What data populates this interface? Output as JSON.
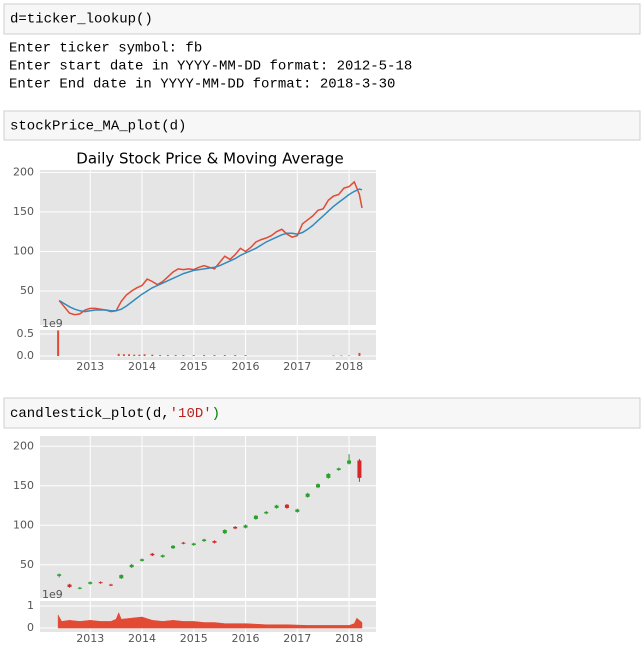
{
  "cells": [
    {
      "code": "d=ticker_lookup()",
      "output": [
        "Enter ticker symbol: fb",
        "Enter start date in YYYY-MM-DD format: 2012-5-18",
        "Enter End date in YYYY-MM-DD format: 2018-3-30"
      ]
    },
    {
      "code": "stockPrice_MA_plot(d)"
    },
    {
      "code": [
        "candlestick_plot(d,",
        "'10D'",
        ")"
      ]
    }
  ],
  "chart_data": [
    {
      "type": "line",
      "title": "Daily Stock Price & Moving Average",
      "x": [
        2012.4,
        2012.5,
        2012.6,
        2012.7,
        2012.8,
        2012.9,
        2013.0,
        2013.1,
        2013.2,
        2013.3,
        2013.4,
        2013.5,
        2013.6,
        2013.7,
        2013.8,
        2013.9,
        2014.0,
        2014.1,
        2014.2,
        2014.3,
        2014.4,
        2014.5,
        2014.6,
        2014.7,
        2014.8,
        2014.9,
        2015.0,
        2015.1,
        2015.2,
        2015.3,
        2015.4,
        2015.5,
        2015.6,
        2015.7,
        2015.8,
        2015.9,
        2016.0,
        2016.1,
        2016.2,
        2016.3,
        2016.4,
        2016.5,
        2016.6,
        2016.7,
        2016.8,
        2016.9,
        2017.0,
        2017.1,
        2017.2,
        2017.3,
        2017.4,
        2017.5,
        2017.6,
        2017.7,
        2017.8,
        2017.9,
        2018.0,
        2018.1,
        2018.2,
        2018.25
      ],
      "series": [
        {
          "color": "#e24a33",
          "values": [
            38,
            30,
            22,
            20,
            21,
            26,
            28,
            28,
            27,
            26,
            24,
            25,
            37,
            45,
            50,
            54,
            57,
            65,
            62,
            58,
            62,
            68,
            74,
            78,
            77,
            78,
            77,
            80,
            82,
            80,
            78,
            86,
            94,
            90,
            96,
            104,
            100,
            105,
            112,
            115,
            117,
            120,
            125,
            128,
            122,
            118,
            120,
            135,
            140,
            145,
            152,
            154,
            165,
            170,
            172,
            180,
            182,
            188,
            172,
            155
          ]
        },
        {
          "color": "#348abd",
          "values": [
            38,
            34,
            30,
            27,
            25,
            24,
            25,
            26,
            26,
            26,
            25,
            25,
            27,
            31,
            36,
            41,
            46,
            50,
            54,
            57,
            60,
            63,
            66,
            69,
            72,
            74,
            76,
            77,
            78,
            79,
            80,
            82,
            85,
            88,
            91,
            95,
            98,
            101,
            104,
            108,
            112,
            115,
            118,
            121,
            123,
            123,
            122,
            124,
            128,
            133,
            139,
            145,
            151,
            157,
            162,
            167,
            172,
            176,
            179,
            178
          ]
        }
      ],
      "xlim": [
        2012.03,
        2018.52
      ],
      "xticks": [
        2013,
        2014,
        2015,
        2016,
        2017,
        2018
      ],
      "ylim": [
        7,
        203
      ],
      "yticks": [
        50,
        100,
        150,
        200
      ],
      "grid": true
    },
    {
      "type": "bar",
      "y_offset_label": "1e9",
      "color": "#e24a33",
      "x": [
        2012.38,
        2013.55,
        2013.65,
        2013.75,
        2013.85,
        2013.95,
        2014.05,
        2014.2,
        2014.35,
        2014.5,
        2014.65,
        2014.8,
        2015.0,
        2015.2,
        2015.4,
        2015.6,
        2015.8,
        2016.0,
        2017.7,
        2017.85,
        2018.0,
        2018.2
      ],
      "values": [
        0.58,
        0.05,
        0.04,
        0.04,
        0.03,
        0.03,
        0.04,
        0.03,
        0.02,
        0.02,
        0.02,
        0.02,
        0.02,
        0.02,
        0.02,
        0.02,
        0.02,
        0.02,
        0.01,
        0.01,
        0.01,
        0.07
      ],
      "xlim": [
        2012.03,
        2018.52
      ],
      "xticks": [
        2013,
        2014,
        2015,
        2016,
        2017,
        2018
      ],
      "ylim": [
        -0.09,
        0.59
      ],
      "yticks": [
        {
          "value": 0,
          "label": "0.0"
        },
        0.5
      ],
      "grid": true
    },
    {
      "type": "candlestick",
      "up_color": "#2ca02c",
      "down_color": "#d62728",
      "x": [
        2012.4,
        2012.6,
        2012.8,
        2013.0,
        2013.2,
        2013.4,
        2013.6,
        2013.8,
        2014.0,
        2014.2,
        2014.4,
        2014.6,
        2014.8,
        2015.0,
        2015.2,
        2015.4,
        2015.6,
        2015.8,
        2016.0,
        2016.2,
        2016.4,
        2016.6,
        2016.8,
        2017.0,
        2017.2,
        2017.4,
        2017.6,
        2017.8,
        2018.0,
        2018.2
      ],
      "open": [
        36,
        25,
        20,
        26,
        28,
        25,
        33,
        47,
        55,
        64,
        60,
        71,
        78,
        75,
        80,
        80,
        90,
        98,
        97,
        108,
        115,
        122,
        126,
        117,
        136,
        148,
        160,
        170,
        178,
        182
      ],
      "high": [
        39,
        26,
        22,
        29,
        29,
        26,
        38,
        51,
        58,
        65,
        63,
        75,
        79,
        78,
        83,
        81,
        95,
        99,
        101,
        113,
        118,
        126,
        127,
        121,
        141,
        153,
        166,
        173,
        190,
        184
      ],
      "low": [
        34,
        21,
        19,
        25,
        26,
        23,
        32,
        46,
        54,
        61,
        59,
        70,
        76,
        74,
        79,
        77,
        89,
        95,
        96,
        107,
        114,
        121,
        121,
        116,
        135,
        147,
        159,
        169,
        177,
        155
      ],
      "close": [
        38,
        22,
        21,
        28,
        27,
        24,
        37,
        50,
        57,
        62,
        62,
        74,
        77,
        77,
        82,
        78,
        94,
        96,
        100,
        112,
        117,
        125,
        122,
        120,
        140,
        152,
        165,
        172,
        182,
        160
      ],
      "xlim": [
        2012.03,
        2018.52
      ],
      "xticks": [
        2013,
        2014,
        2015,
        2016,
        2017,
        2018
      ],
      "ylim": [
        8,
        213
      ],
      "yticks": [
        50,
        100,
        150,
        200
      ],
      "grid": true
    },
    {
      "type": "area",
      "y_offset_label": "1e9",
      "color": "#e24a33",
      "x": [
        2012.38,
        2012.45,
        2012.6,
        2012.8,
        2013.0,
        2013.2,
        2013.4,
        2013.5,
        2013.55,
        2013.6,
        2013.8,
        2014.0,
        2014.2,
        2014.4,
        2014.6,
        2014.8,
        2015.0,
        2015.2,
        2015.4,
        2015.6,
        2015.8,
        2016.0,
        2016.4,
        2016.8,
        2017.2,
        2017.6,
        2018.0,
        2018.1,
        2018.15,
        2018.25
      ],
      "values": [
        0.6,
        0.3,
        0.35,
        0.3,
        0.35,
        0.3,
        0.3,
        0.4,
        0.7,
        0.4,
        0.45,
        0.5,
        0.35,
        0.3,
        0.35,
        0.3,
        0.3,
        0.25,
        0.25,
        0.2,
        0.2,
        0.2,
        0.15,
        0.15,
        0.12,
        0.12,
        0.12,
        0.2,
        0.45,
        0.25
      ],
      "xlim": [
        2012.03,
        2018.52
      ],
      "xticks": [
        2013,
        2014,
        2015,
        2016,
        2017,
        2018
      ],
      "ylim": [
        -0.18,
        1.23
      ],
      "yticks": [
        0,
        1
      ],
      "grid": true
    }
  ]
}
